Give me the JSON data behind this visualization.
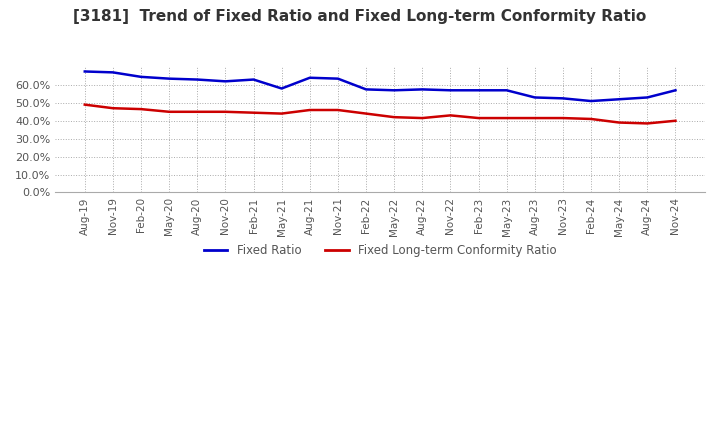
{
  "title": "[3181]  Trend of Fixed Ratio and Fixed Long-term Conformity Ratio",
  "title_fontsize": 11,
  "x_labels": [
    "Aug-19",
    "Nov-19",
    "Feb-20",
    "May-20",
    "Aug-20",
    "Nov-20",
    "Feb-21",
    "May-21",
    "Aug-21",
    "Nov-21",
    "Feb-22",
    "May-22",
    "Aug-22",
    "Nov-22",
    "Feb-23",
    "May-23",
    "Aug-23",
    "Nov-23",
    "Feb-24",
    "May-24",
    "Aug-24",
    "Nov-24"
  ],
  "fixed_ratio": [
    67.5,
    67.0,
    64.5,
    63.5,
    63.0,
    62.0,
    63.0,
    58.0,
    64.0,
    63.5,
    57.5,
    57.0,
    57.5,
    57.0,
    57.0,
    57.0,
    53.0,
    52.5,
    51.0,
    52.0,
    53.0,
    57.0
  ],
  "fixed_lt_ratio": [
    49.0,
    47.0,
    46.5,
    45.0,
    45.0,
    45.0,
    44.5,
    44.0,
    46.0,
    46.0,
    44.0,
    42.0,
    41.5,
    43.0,
    41.5,
    41.5,
    41.5,
    41.5,
    41.0,
    39.0,
    38.5,
    40.0
  ],
  "fixed_ratio_color": "#0000cc",
  "fixed_lt_ratio_color": "#cc0000",
  "ylim": [
    0,
    70
  ],
  "yticks": [
    0,
    10,
    20,
    30,
    40,
    50,
    60
  ],
  "background_color": "#ffffff",
  "grid_color": "#aaaaaa",
  "line_width": 1.8
}
